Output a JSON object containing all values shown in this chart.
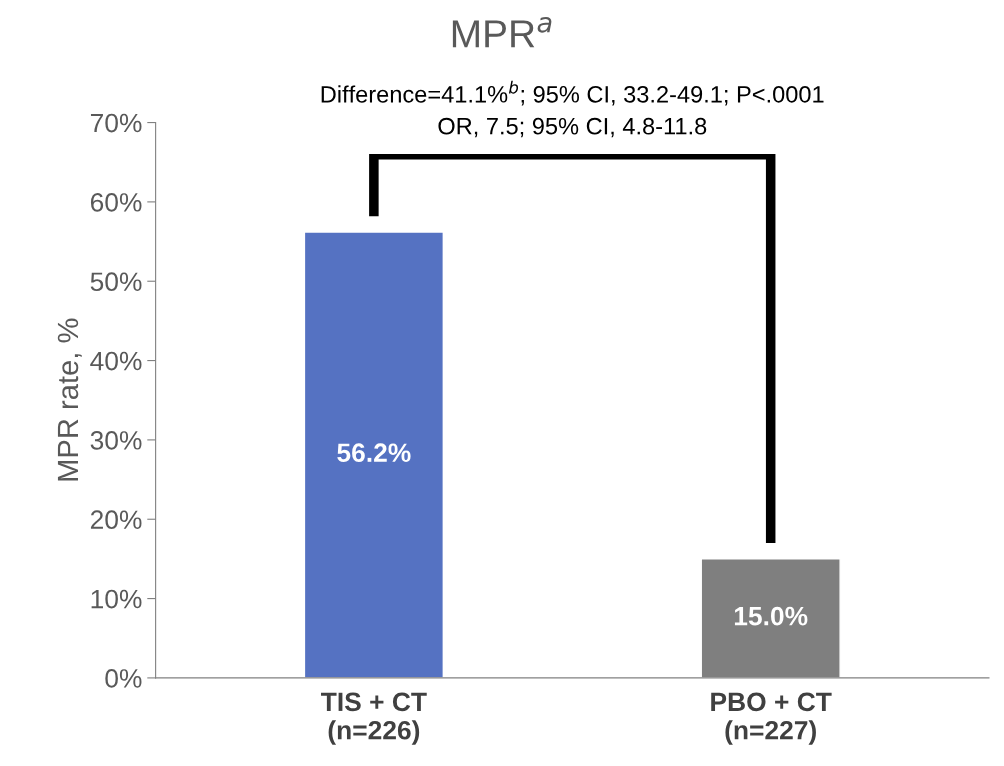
{
  "chart_data": {
    "type": "bar",
    "title": "MPR$^{a}$",
    "ylabel": "MPR rate, %",
    "categories": [
      "TIS + CT\n(n=226)",
      "PBO + CT\n(n=227)"
    ],
    "values": [
      56.2,
      15.0
    ],
    "colors": [
      "#5572c2",
      "#7f7f7f"
    ],
    "value_labels": [
      "56.2%",
      "15.0%"
    ],
    "ylim": [
      0,
      70
    ],
    "yticks": [
      {
        "value": 0,
        "label": "0%"
      },
      {
        "value": 10,
        "label": "10%"
      },
      {
        "value": 20,
        "label": "20%"
      },
      {
        "value": 30,
        "label": "30%"
      },
      {
        "value": 40,
        "label": "40%"
      },
      {
        "value": 50,
        "label": "50%"
      },
      {
        "value": 60,
        "label": "60%"
      },
      {
        "value": 70,
        "label": "70%"
      }
    ],
    "grid": false,
    "legend": false,
    "annotations": [
      "Difference=41.1%$^{b}$; 95% CI, 33.2-49.1; P<.0001",
      "OR, 7.5; 95% CI, 4.8-11.8"
    ]
  }
}
